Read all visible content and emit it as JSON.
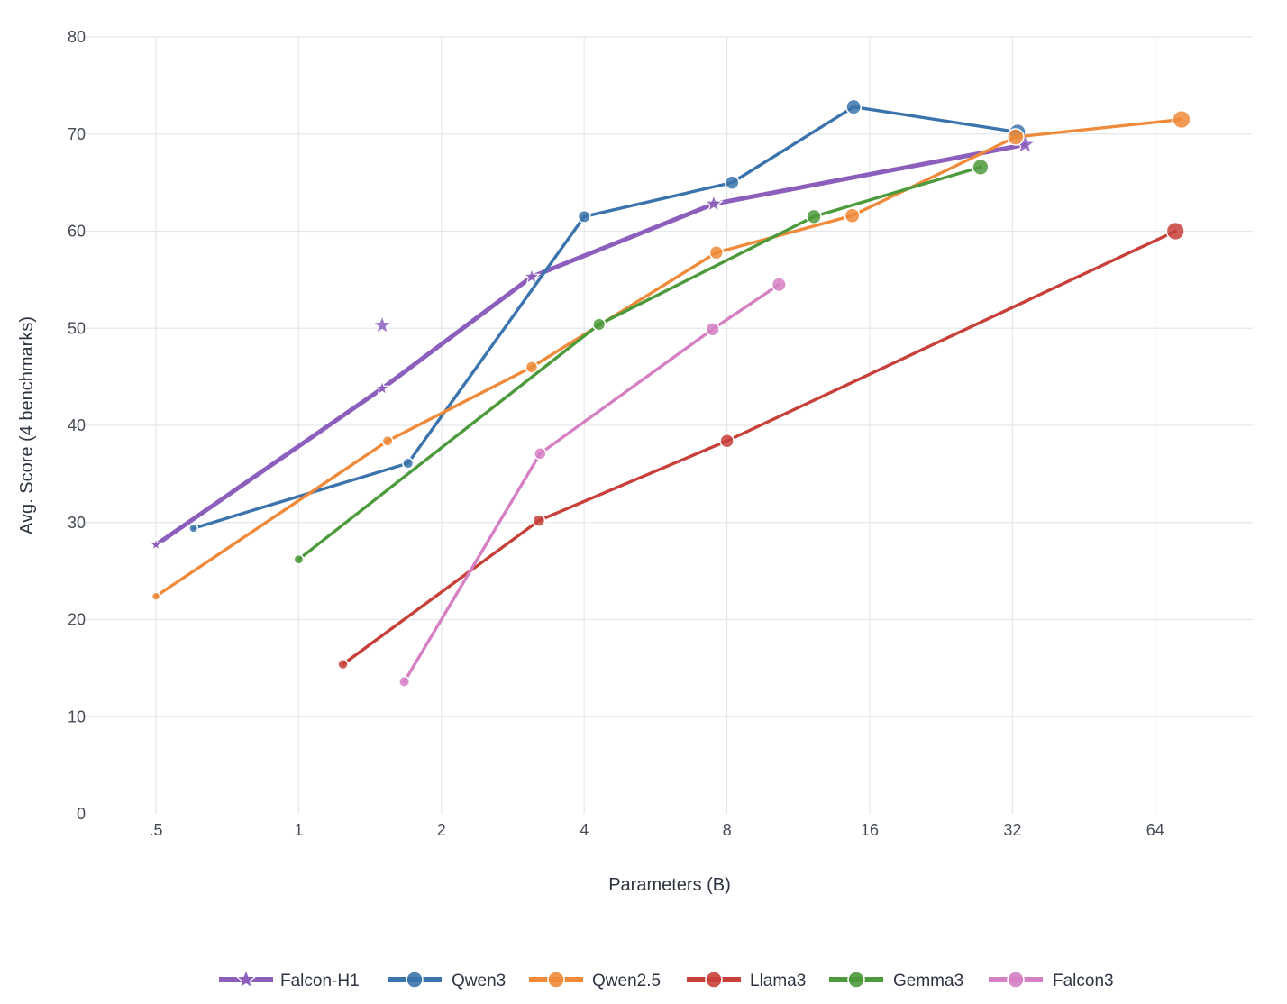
{
  "chart_data": {
    "type": "line",
    "title": "",
    "xlabel": "Parameters (B)",
    "ylabel": "Avg. Score (4 benchmarks)",
    "x_scale": "log2",
    "xlim": [
      0.4,
      100
    ],
    "ylim": [
      0,
      80
    ],
    "x_ticks": [
      0.5,
      1,
      2,
      4,
      8,
      16,
      32,
      64
    ],
    "x_tick_labels": [
      ".5",
      "1",
      "2",
      "4",
      "8",
      "16",
      "32",
      "64"
    ],
    "y_ticks": [
      0,
      10,
      20,
      30,
      40,
      50,
      60,
      70,
      80
    ],
    "y_tick_labels": [
      "0",
      "10",
      "20",
      "30",
      "40",
      "50",
      "60",
      "70",
      "80"
    ],
    "grid": true,
    "legend_position": "bottom",
    "series": [
      {
        "name": "Falcon-H1",
        "color": "#8c5fbd",
        "marker": "star",
        "points": [
          {
            "x": 0.5,
            "y": 27.7
          },
          {
            "x": 1.5,
            "y": 43.8
          },
          {
            "x": 3.1,
            "y": 55.3
          },
          {
            "x": 7.5,
            "y": 62.8
          },
          {
            "x": 34,
            "y": 68.9
          }
        ],
        "extra_points": [
          {
            "x": 1.5,
            "y": 50.3
          }
        ]
      },
      {
        "name": "Qwen3",
        "color": "#3b74ad",
        "marker": "circle",
        "points": [
          {
            "x": 0.6,
            "y": 29.4
          },
          {
            "x": 1.7,
            "y": 36.1
          },
          {
            "x": 4,
            "y": 61.5
          },
          {
            "x": 8.2,
            "y": 65.0
          },
          {
            "x": 14.8,
            "y": 72.8
          },
          {
            "x": 32.8,
            "y": 70.2
          }
        ]
      },
      {
        "name": "Qwen2.5",
        "color": "#ef8a3a",
        "marker": "circle",
        "points": [
          {
            "x": 0.5,
            "y": 22.4
          },
          {
            "x": 1.54,
            "y": 38.4
          },
          {
            "x": 3.1,
            "y": 46.0
          },
          {
            "x": 7.6,
            "y": 57.8
          },
          {
            "x": 14.7,
            "y": 61.6
          },
          {
            "x": 32.5,
            "y": 69.7
          },
          {
            "x": 72.7,
            "y": 71.5
          }
        ]
      },
      {
        "name": "Llama3",
        "color": "#c8403a",
        "marker": "circle",
        "points": [
          {
            "x": 1.24,
            "y": 15.4
          },
          {
            "x": 3.21,
            "y": 30.2
          },
          {
            "x": 8.0,
            "y": 38.4
          },
          {
            "x": 70.6,
            "y": 60.0
          }
        ]
      },
      {
        "name": "Gemma3",
        "color": "#4c9a3b",
        "marker": "circle",
        "points": [
          {
            "x": 1.0,
            "y": 26.2
          },
          {
            "x": 4.3,
            "y": 50.4
          },
          {
            "x": 12.2,
            "y": 61.5
          },
          {
            "x": 27.4,
            "y": 66.6
          }
        ]
      },
      {
        "name": "Falcon3",
        "color": "#d57fc4",
        "marker": "circle",
        "points": [
          {
            "x": 1.67,
            "y": 13.6
          },
          {
            "x": 3.23,
            "y": 37.1
          },
          {
            "x": 7.46,
            "y": 49.9
          },
          {
            "x": 10.3,
            "y": 54.5
          }
        ]
      }
    ]
  }
}
